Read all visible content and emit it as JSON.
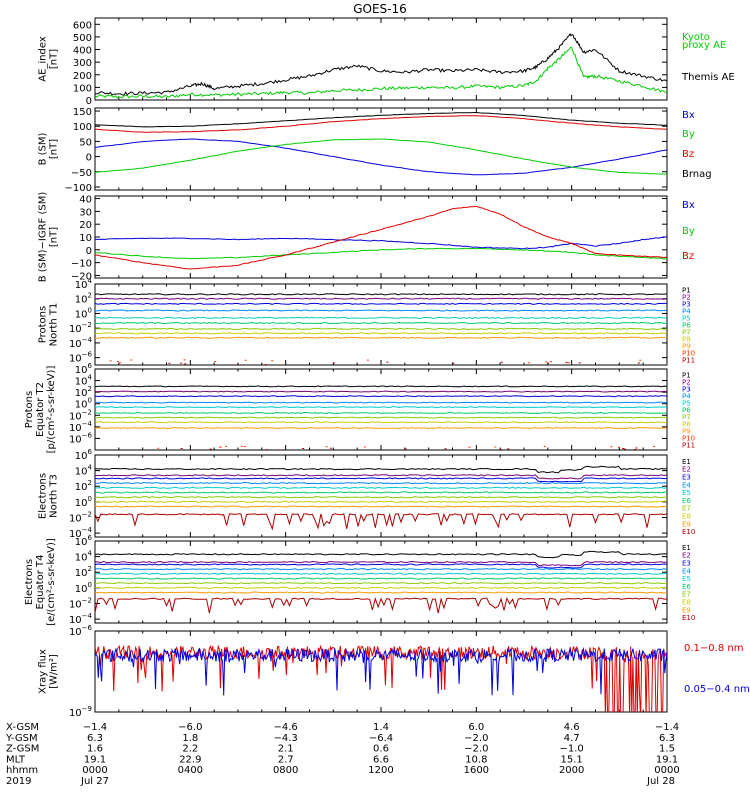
{
  "title": "GOES-16",
  "colors": {
    "black": "#000000",
    "red": "#e00000",
    "green": "#00cc00",
    "blue": "#0000dd",
    "rainbow": [
      "#000000",
      "#7a007a",
      "#0000dd",
      "#0088ff",
      "#00cccc",
      "#00cc66",
      "#88cc00",
      "#cccc00",
      "#ff9900",
      "#ff3300",
      "#aa0000"
    ]
  },
  "x_axis": {
    "hours": [
      0,
      4,
      8,
      12,
      16,
      20,
      24
    ],
    "rows": [
      {
        "label": "X-GSM",
        "values": [
          "−1.4",
          "−6.0",
          "−4.6",
          "1.4",
          "6.0",
          "4.6",
          "−1.4"
        ]
      },
      {
        "label": "Y-GSM",
        "values": [
          "6.3",
          "1.8",
          "−4.3",
          "−6.4",
          "−2.0",
          "4.7",
          "6.3"
        ]
      },
      {
        "label": "Z-GSM",
        "values": [
          "1.6",
          "2.2",
          "2.1",
          "0.6",
          "−2.0",
          "−1.0",
          "1.5"
        ]
      },
      {
        "label": "MLT",
        "values": [
          "19.1",
          "22.9",
          "2.7",
          "6.6",
          "10.8",
          "15.1",
          "19.1"
        ]
      },
      {
        "label": "hhmm",
        "values": [
          "0000",
          "0400",
          "0800",
          "1200",
          "1600",
          "2000",
          "0000"
        ]
      },
      {
        "label": "2019",
        "values": [
          "Jul 27",
          "",
          "",
          "",
          "",
          "",
          "Jul 28"
        ]
      }
    ]
  },
  "chart_data": [
    {
      "type": "line",
      "id": "ae",
      "ylabel": [
        "AE_index",
        "[nT]"
      ],
      "yscale": "linear",
      "ylim": [
        0,
        650
      ],
      "yticks": [
        "0",
        "100",
        "200",
        "300",
        "400",
        "500",
        "600"
      ],
      "ytick_values": [
        0,
        100,
        200,
        300,
        400,
        500,
        600
      ],
      "series": [
        {
          "name": "Kyoto proxy AE",
          "legend": [
            "Kyoto",
            "proxy AE"
          ],
          "color": "#00cc00",
          "x": [
            0,
            1,
            2,
            3,
            4,
            5,
            6,
            7,
            8,
            9,
            10,
            11,
            12,
            13,
            14,
            15,
            16,
            17,
            18,
            18.5,
            19,
            19.5,
            20,
            20.5,
            21,
            22,
            23,
            24
          ],
          "y": [
            30,
            25,
            30,
            25,
            45,
            40,
            45,
            50,
            60,
            55,
            75,
            80,
            90,
            95,
            100,
            95,
            110,
            100,
            115,
            150,
            250,
            330,
            420,
            180,
            190,
            150,
            110,
            60
          ]
        },
        {
          "name": "Themis AE",
          "legend": [
            "Themis AE"
          ],
          "color": "#000000",
          "x": [
            0,
            1,
            2,
            3,
            4,
            4.5,
            5,
            6,
            7,
            8,
            9,
            10,
            11,
            12,
            13,
            14,
            15,
            16,
            17,
            18,
            18.5,
            19,
            19.5,
            20,
            20.5,
            21,
            22,
            23,
            24
          ],
          "y": [
            60,
            50,
            55,
            60,
            110,
            130,
            90,
            110,
            130,
            160,
            190,
            240,
            270,
            230,
            220,
            240,
            230,
            240,
            220,
            230,
            260,
            330,
            420,
            530,
            380,
            400,
            230,
            190,
            150
          ]
        }
      ]
    },
    {
      "type": "line",
      "id": "b_sm",
      "ylabel": [
        "B (SM)",
        "[nT]"
      ],
      "yscale": "linear",
      "ylim": [
        -110,
        160
      ],
      "yticks": [
        "−100",
        "−50",
        "0",
        "50",
        "100",
        "150"
      ],
      "ytick_values": [
        -100,
        -50,
        0,
        50,
        100,
        150
      ],
      "series": [
        {
          "name": "Bx",
          "color": "#0000dd",
          "x": [
            0,
            2,
            4,
            6,
            8,
            10,
            12,
            14,
            16,
            18,
            20,
            22,
            24
          ],
          "y": [
            30,
            50,
            58,
            50,
            28,
            0,
            -28,
            -50,
            -60,
            -55,
            -35,
            -8,
            22
          ]
        },
        {
          "name": "By",
          "color": "#00cc00",
          "x": [
            0,
            2,
            4,
            6,
            8,
            10,
            12,
            14,
            16,
            18,
            20,
            22,
            24
          ],
          "y": [
            -52,
            -38,
            -12,
            18,
            40,
            55,
            58,
            48,
            22,
            -8,
            -35,
            -52,
            -58
          ]
        },
        {
          "name": "Bz",
          "color": "#e00000",
          "x": [
            0,
            2,
            4,
            6,
            8,
            10,
            12,
            14,
            16,
            18,
            20,
            22,
            24
          ],
          "y": [
            90,
            80,
            82,
            88,
            100,
            115,
            125,
            132,
            135,
            125,
            110,
            98,
            90
          ]
        },
        {
          "name": "Brnag",
          "color": "#000000",
          "x": [
            0,
            2,
            4,
            6,
            8,
            10,
            12,
            14,
            16,
            18,
            20,
            22,
            24
          ],
          "y": [
            105,
            98,
            100,
            108,
            118,
            128,
            136,
            142,
            145,
            135,
            120,
            110,
            103
          ]
        }
      ]
    },
    {
      "type": "line",
      "id": "b_igrf",
      "ylabel": [
        "B (SM)−IGRF (SM)",
        "[nT]"
      ],
      "yscale": "linear",
      "ylim": [
        -22,
        42
      ],
      "yticks": [
        "−20",
        "−10",
        "0",
        "10",
        "20",
        "30",
        "40"
      ],
      "ytick_values": [
        -20,
        -10,
        0,
        10,
        20,
        30,
        40
      ],
      "series": [
        {
          "name": "Bx",
          "color": "#0000dd",
          "x": [
            0,
            2,
            4,
            6,
            8,
            10,
            12,
            14,
            16,
            18,
            19,
            20,
            21,
            22,
            23,
            24
          ],
          "y": [
            8,
            9,
            9,
            8,
            9,
            8,
            7,
            5,
            2,
            1,
            2,
            5,
            3,
            5,
            8,
            10
          ]
        },
        {
          "name": "By",
          "color": "#00cc00",
          "x": [
            0,
            2,
            4,
            6,
            8,
            10,
            12,
            14,
            16,
            18,
            19,
            20,
            21,
            22,
            23,
            24
          ],
          "y": [
            -2,
            -5,
            -7,
            -6,
            -4,
            -2,
            0,
            1,
            1,
            0,
            -1,
            -2,
            -4,
            -5,
            -6,
            -7
          ]
        },
        {
          "name": "Bz",
          "color": "#e00000",
          "x": [
            0,
            2,
            4,
            6,
            8,
            10,
            12,
            14,
            15,
            16,
            17,
            18,
            19,
            20,
            21,
            22,
            23,
            24
          ],
          "y": [
            -4,
            -10,
            -15,
            -12,
            -4,
            6,
            16,
            26,
            32,
            34,
            28,
            18,
            10,
            5,
            -3,
            -4,
            -5,
            -6
          ]
        }
      ]
    },
    {
      "type": "line",
      "id": "protons_t1",
      "ylabel": [
        "Protons",
        "North T1"
      ],
      "yscale": "log",
      "ylim": [
        -7,
        4
      ],
      "yticks": [
        "10^-6",
        "10^-4",
        "10^-2",
        "10^0",
        "10^2",
        "10^4"
      ],
      "ytick_values": [
        -6,
        -4,
        -2,
        0,
        2,
        4
      ],
      "series": [
        {
          "name": "P1",
          "color": "#000000",
          "level": 2.6
        },
        {
          "name": "P2",
          "color": "#7a007a",
          "level": 2.0
        },
        {
          "name": "P3",
          "color": "#0000dd",
          "level": 1.3
        },
        {
          "name": "P4",
          "color": "#0088ff",
          "level": 0.4
        },
        {
          "name": "P5",
          "color": "#00cccc",
          "level": -0.6
        },
        {
          "name": "P6",
          "color": "#00cc66",
          "level": -1.3
        },
        {
          "name": "P7",
          "color": "#88cc00",
          "level": -2.1
        },
        {
          "name": "P8",
          "color": "#cccc00",
          "level": -2.7
        },
        {
          "name": "P9",
          "color": "#ff9900",
          "level": -3.3
        },
        {
          "name": "P10",
          "color": "#ff3300",
          "level": -6.5
        },
        {
          "name": "P11",
          "color": "#aa0000",
          "level": -6.8
        }
      ]
    },
    {
      "type": "line",
      "id": "protons_t2",
      "ylabel": [
        "Protons",
        "Equator T2",
        "[p/(cm²-s-sr-keV)]"
      ],
      "yscale": "log",
      "ylim": [
        -8,
        6
      ],
      "yticks": [
        "10^-6",
        "10^-4",
        "10^-2",
        "10^0",
        "10^2",
        "10^4",
        "10^6"
      ],
      "ytick_values": [
        -6,
        -4,
        -2,
        0,
        2,
        4,
        6
      ],
      "series": [
        {
          "name": "P1",
          "color": "#000000",
          "level": 3.0
        },
        {
          "name": "P2",
          "color": "#7a007a",
          "level": 2.1
        },
        {
          "name": "P3",
          "color": "#0000dd",
          "level": 1.3
        },
        {
          "name": "P4",
          "color": "#0088ff",
          "level": 0.2
        },
        {
          "name": "P5",
          "color": "#00cccc",
          "level": -0.6
        },
        {
          "name": "P6",
          "color": "#00cc66",
          "level": -1.6
        },
        {
          "name": "P7",
          "color": "#88cc00",
          "level": -2.4
        },
        {
          "name": "P8",
          "color": "#cccc00",
          "level": -3.2
        },
        {
          "name": "P9",
          "color": "#ff9900",
          "level": -4.2
        },
        {
          "name": "P10",
          "color": "#ff3300",
          "level": -7.5
        },
        {
          "name": "P11",
          "color": "#aa0000",
          "level": -7.8
        }
      ]
    },
    {
      "type": "line",
      "id": "electrons_t3",
      "ylabel": [
        "Electrons",
        "North T3"
      ],
      "yscale": "log",
      "ylim": [
        -4.5,
        6
      ],
      "yticks": [
        "10^-4",
        "10^-2",
        "10^0",
        "10^2",
        "10^4",
        "10^6"
      ],
      "ytick_values": [
        -4,
        -2,
        0,
        2,
        4,
        6
      ],
      "series": [
        {
          "name": "E1",
          "color": "#000000",
          "level": 4.2
        },
        {
          "name": "E2",
          "color": "#7a007a",
          "level": 3.4
        },
        {
          "name": "E3",
          "color": "#0000dd",
          "level": 3.0
        },
        {
          "name": "E4",
          "color": "#0088ff",
          "level": 2.4
        },
        {
          "name": "E5",
          "color": "#00cccc",
          "level": 1.8
        },
        {
          "name": "E6",
          "color": "#00cc66",
          "level": 1.2
        },
        {
          "name": "E7",
          "color": "#88cc00",
          "level": 0.6
        },
        {
          "name": "E8",
          "color": "#cccc00",
          "level": 0.0
        },
        {
          "name": "E9",
          "color": "#ff9900",
          "level": -0.6
        },
        {
          "name": "E10",
          "color": "#aa0000",
          "level": -1.6
        }
      ]
    },
    {
      "type": "line",
      "id": "electrons_t4",
      "ylabel": [
        "Electrons",
        "Equator T4",
        "[e/(cm²-s-sr-keV)]"
      ],
      "yscale": "log",
      "ylim": [
        -4.5,
        6
      ],
      "yticks": [
        "10^-4",
        "10^-2",
        "10^0",
        "10^2",
        "10^4",
        "10^6"
      ],
      "ytick_values": [
        -4,
        -2,
        0,
        2,
        4,
        6
      ],
      "series": [
        {
          "name": "E1",
          "color": "#000000",
          "level": 4.3
        },
        {
          "name": "E2",
          "color": "#7a007a",
          "level": 3.3
        },
        {
          "name": "E3",
          "color": "#0000dd",
          "level": 3.0
        },
        {
          "name": "E4",
          "color": "#0088ff",
          "level": 2.4
        },
        {
          "name": "E5",
          "color": "#00cccc",
          "level": 1.8
        },
        {
          "name": "E6",
          "color": "#00cc66",
          "level": 1.2
        },
        {
          "name": "E7",
          "color": "#88cc00",
          "level": 0.6
        },
        {
          "name": "E8",
          "color": "#cccc00",
          "level": 0.0
        },
        {
          "name": "E9",
          "color": "#ff9900",
          "level": -0.6
        },
        {
          "name": "E10",
          "color": "#aa0000",
          "level": -1.4
        }
      ]
    },
    {
      "type": "line",
      "id": "xray",
      "ylabel": [
        "Xray flux",
        "[W/m²]"
      ],
      "yscale": "log",
      "ylim": [
        -9,
        -6
      ],
      "yticks": [
        "10^-9",
        "10^-6"
      ],
      "ytick_values": [
        -9,
        -6
      ],
      "series": [
        {
          "name": "0.1−0.8 nm",
          "color": "#e00000",
          "level": -6.8
        },
        {
          "name": "0.05−0.4 nm",
          "color": "#0000dd",
          "level": -6.9
        }
      ]
    }
  ]
}
